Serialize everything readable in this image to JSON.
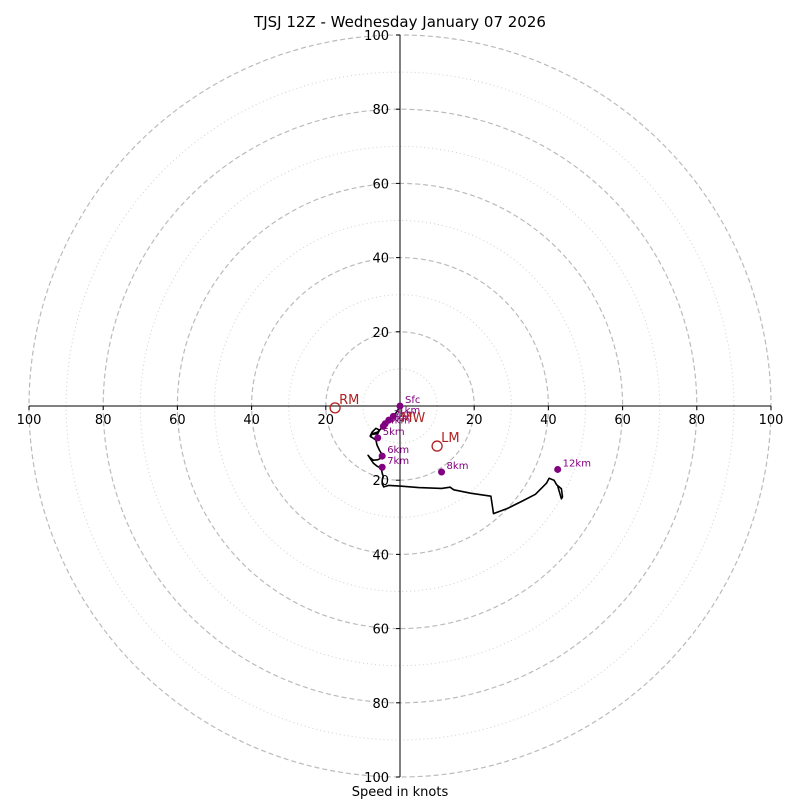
{
  "chart_data": {
    "type": "hodograph",
    "title": "TJSJ 12Z - Wednesday January 07 2026",
    "xlabel": "Speed in knots",
    "units": "knots",
    "range": [
      -100,
      100
    ],
    "ring_major": [
      20,
      40,
      60,
      80,
      100
    ],
    "ring_minor": [
      10,
      30,
      50,
      70,
      90
    ],
    "tick_labels": {
      "x": [
        "100",
        "80",
        "60",
        "40",
        "20",
        "20",
        "40",
        "60",
        "80",
        "100"
      ],
      "y": [
        "100",
        "80",
        "60",
        "40",
        "20",
        "20",
        "40",
        "60",
        "80",
        "100"
      ]
    },
    "trace": [
      [
        0,
        0
      ],
      [
        -0.8,
        -1.5
      ],
      [
        -1.8,
        -2.8
      ],
      [
        -3,
        -3.8
      ],
      [
        -4,
        -4.8
      ],
      [
        -4.5,
        -5.5
      ],
      [
        -5.2,
        -6.2
      ],
      [
        -6,
        -7
      ],
      [
        -7.5,
        -7.5
      ],
      [
        -8,
        -8
      ],
      [
        -7.5,
        -7
      ],
      [
        -6.5,
        -6
      ],
      [
        -5.5,
        -6.5
      ],
      [
        -6,
        -7.5
      ],
      [
        -7.5,
        -7.6
      ],
      [
        -8,
        -8.2
      ],
      [
        -7.5,
        -8.5
      ],
      [
        -6.5,
        -9.2
      ],
      [
        -6.2,
        -10.5
      ],
      [
        -5.5,
        -12
      ],
      [
        -5,
        -12.8
      ],
      [
        -4.8,
        -13.5
      ],
      [
        -5,
        -14
      ],
      [
        -6,
        -14.5
      ],
      [
        -7.2,
        -14.6
      ],
      [
        -8.2,
        -13.8
      ],
      [
        -8.6,
        -13.3
      ],
      [
        -8,
        -14.2
      ],
      [
        -7.2,
        -15.4
      ],
      [
        -6.2,
        -16.2
      ],
      [
        -5,
        -16.9
      ],
      [
        -4.8,
        -18.1
      ],
      [
        -4.5,
        -19
      ],
      [
        -4.8,
        -20
      ],
      [
        -4.8,
        -21
      ],
      [
        -4.4,
        -21.8
      ],
      [
        -3,
        -21.4
      ],
      [
        0,
        -21.6
      ],
      [
        5,
        -22
      ],
      [
        11.2,
        -22.2
      ],
      [
        13.5,
        -21.9
      ],
      [
        14.5,
        -22.6
      ],
      [
        19,
        -23.5
      ],
      [
        24.5,
        -24.3
      ],
      [
        25.2,
        -29
      ],
      [
        29,
        -27.6
      ],
      [
        33,
        -25.6
      ],
      [
        36.5,
        -23.8
      ],
      [
        39.5,
        -20.8
      ],
      [
        40.2,
        -19.5
      ],
      [
        41.5,
        -20
      ],
      [
        42.2,
        -21.2
      ],
      [
        43.5,
        -22.3
      ],
      [
        43.8,
        -24.5
      ],
      [
        43.5,
        -25
      ],
      [
        42.5,
        -21.6
      ]
    ],
    "heights": [
      {
        "label": "Sfc",
        "u": 0,
        "v": 0
      },
      {
        "label": "1km",
        "u": -1.8,
        "v": -2.8
      },
      {
        "label": "2km",
        "u": -3,
        "v": -3.8
      },
      {
        "label": "3km",
        "u": -4,
        "v": -4.8
      },
      {
        "label": "4km",
        "u": -4.5,
        "v": -5.5
      },
      {
        "label": "5km",
        "u": -6,
        "v": -8.6
      },
      {
        "label": "6km",
        "u": -4.8,
        "v": -13.5
      },
      {
        "label": "7km",
        "u": -4.8,
        "v": -16.5
      },
      {
        "label": "8km",
        "u": 11.2,
        "v": -17.8
      },
      {
        "label": "12km",
        "u": 42.5,
        "v": -17.1
      }
    ],
    "markers": [
      {
        "label": "RM",
        "u": -17.5,
        "v": -0.5
      },
      {
        "label": "LM",
        "u": 10,
        "v": -10.8
      },
      {
        "label": "MW",
        "u": 0.3,
        "v": -3.2
      }
    ],
    "colors": {
      "trace": "#000000",
      "height_point": "#800080",
      "marker": "#b22222",
      "ring": "#bbbbbb",
      "axis": "#000000"
    }
  }
}
